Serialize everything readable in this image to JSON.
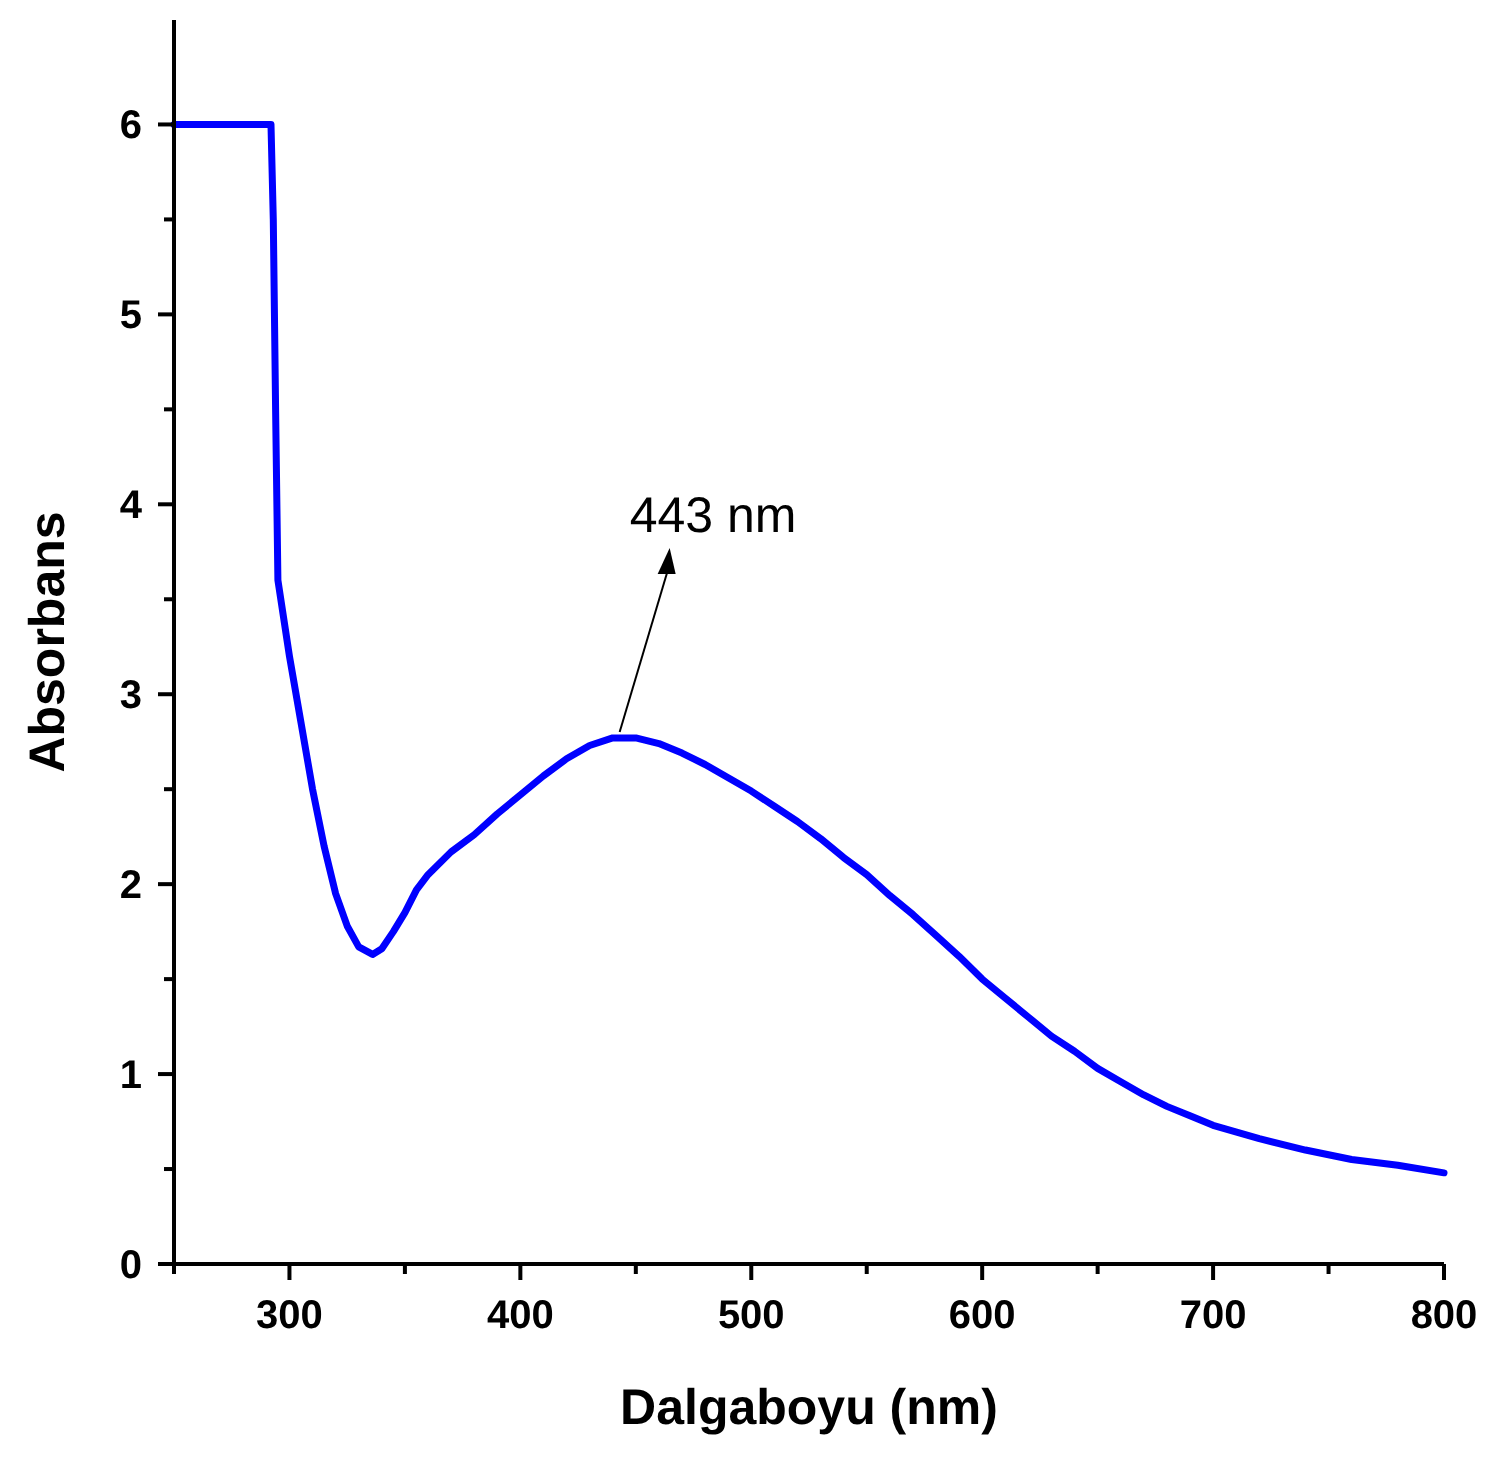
{
  "chart_data": {
    "type": "line",
    "xlabel": "Dalgaboyu (nm)",
    "ylabel": "Absorbans",
    "x": [
      250,
      292,
      293,
      294,
      295,
      300,
      305,
      310,
      315,
      320,
      325,
      330,
      336,
      340,
      345,
      350,
      355,
      360,
      370,
      380,
      390,
      400,
      410,
      420,
      430,
      440,
      450,
      460,
      470,
      480,
      490,
      500,
      510,
      520,
      530,
      540,
      550,
      560,
      570,
      580,
      590,
      600,
      610,
      620,
      630,
      640,
      650,
      660,
      670,
      680,
      690,
      700,
      720,
      740,
      760,
      780,
      800
    ],
    "series": [
      {
        "color": "#0000ff",
        "values": [
          6,
          6,
          5.5,
          4.5,
          3.6,
          3.2,
          2.85,
          2.5,
          2.2,
          1.95,
          1.78,
          1.67,
          1.63,
          1.66,
          1.75,
          1.85,
          1.97,
          2.05,
          2.17,
          2.26,
          2.37,
          2.47,
          2.57,
          2.66,
          2.73,
          2.77,
          2.77,
          2.74,
          2.69,
          2.63,
          2.56,
          2.49,
          2.41,
          2.33,
          2.24,
          2.14,
          2.05,
          1.94,
          1.84,
          1.73,
          1.62,
          1.5,
          1.4,
          1.3,
          1.2,
          1.12,
          1.03,
          0.96,
          0.89,
          0.83,
          0.78,
          0.73,
          0.66,
          0.6,
          0.55,
          0.52,
          0.48
        ]
      }
    ],
    "xlim": [
      250,
      800
    ],
    "ylim": [
      0,
      6.55
    ],
    "xticks": [
      {
        "value": 250,
        "label": null
      },
      300,
      {
        "value": 350,
        "label": null
      },
      400,
      {
        "value": 450,
        "label": null
      },
      500,
      {
        "value": 550,
        "label": null
      },
      600,
      {
        "value": 650,
        "label": null
      },
      700,
      {
        "value": 750,
        "label": null
      },
      800
    ],
    "yticks": [
      0,
      {
        "value": 0.5,
        "label": null
      },
      1,
      {
        "value": 1.5,
        "label": null
      },
      2,
      {
        "value": 2.5,
        "label": null
      },
      3,
      {
        "value": 3.5,
        "label": null
      },
      4,
      {
        "value": 4.5,
        "label": null
      },
      5,
      {
        "value": 5.5,
        "label": null
      },
      6
    ],
    "annotations": [
      {
        "text": "443 nm",
        "x": 443,
        "y": 2.78
      }
    ],
    "grid": false,
    "marker": "none",
    "line_style": "solid"
  }
}
